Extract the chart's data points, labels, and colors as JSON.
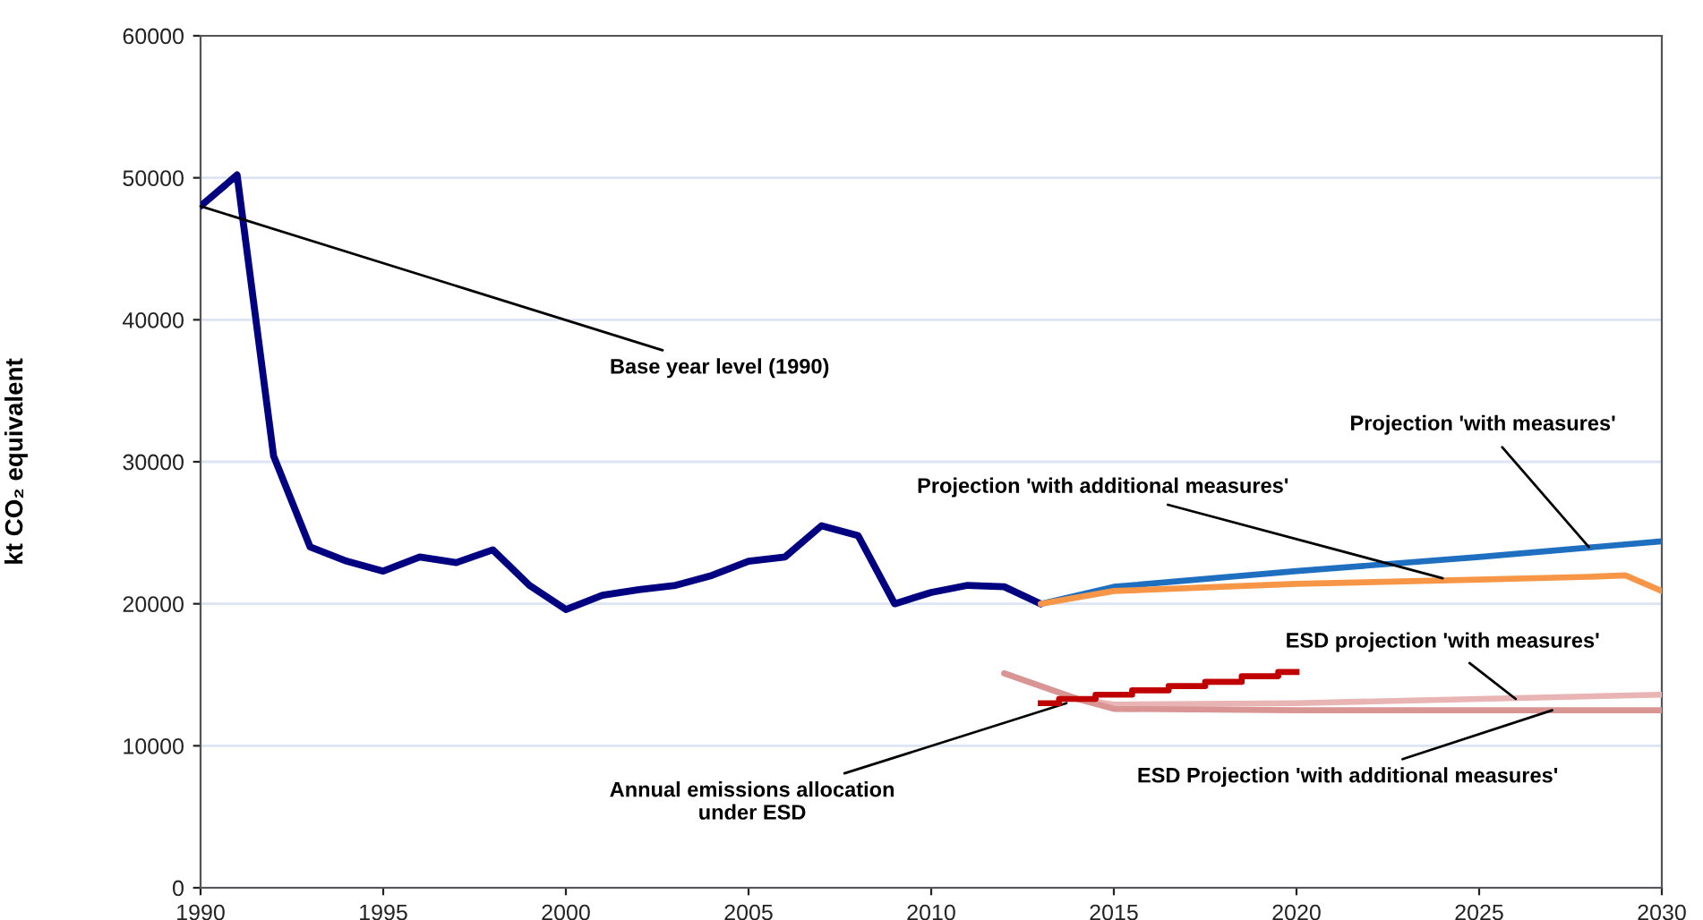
{
  "chart_data": {
    "type": "line",
    "ylabel": "kt CO₂ equivalent",
    "xlim": [
      1990,
      2030
    ],
    "xticks": [
      1990,
      1995,
      2000,
      2005,
      2010,
      2015,
      2020,
      2025,
      2030
    ],
    "ylim": [
      0,
      60000
    ],
    "yticks": [
      0,
      10000,
      20000,
      30000,
      40000,
      50000,
      60000
    ],
    "grid": "y",
    "legend": false,
    "series": [
      {
        "color": "#000080",
        "x": [
          1990,
          1991,
          1992,
          1993,
          1994,
          1995,
          1996,
          1997,
          1998,
          1999,
          2000,
          2001,
          2002,
          2003,
          2004,
          2005,
          2006,
          2007,
          2008,
          2009,
          2010,
          2011,
          2012,
          2013
        ],
        "values": [
          48000,
          50200,
          30400,
          24000,
          23000,
          22300,
          23300,
          22900,
          23800,
          21300,
          19600,
          20600,
          21000,
          21300,
          22000,
          23000,
          23300,
          25500,
          24800,
          20000,
          20800,
          21300,
          21200,
          20000
        ]
      },
      {
        "color": "#1f6fc0",
        "x": [
          2013,
          2015,
          2020,
          2025,
          2030
        ],
        "values": [
          20000,
          21200,
          22300,
          23300,
          24400
        ]
      },
      {
        "color": "#f79646",
        "x": [
          2013,
          2015,
          2020,
          2025,
          2028,
          2029,
          2030
        ],
        "values": [
          20000,
          20900,
          21400,
          21700,
          21900,
          22000,
          20900
        ]
      },
      {
        "color": "#e8b4b4",
        "x": [
          2012,
          2014,
          2015,
          2020,
          2025,
          2030
        ],
        "values": [
          15100,
          13300,
          12900,
          13000,
          13300,
          13600
        ]
      },
      {
        "color": "#d99494",
        "x": [
          2012,
          2014,
          2015,
          2020,
          2025,
          2030
        ],
        "values": [
          15100,
          13300,
          12600,
          12500,
          12500,
          12500
        ]
      },
      {
        "type": "step",
        "color": "#c00000",
        "x": [
          2013,
          2014,
          2015,
          2016,
          2017,
          2018,
          2019,
          2020
        ],
        "values": [
          13000,
          13300,
          13600,
          13900,
          14200,
          14500,
          14900,
          15200
        ]
      }
    ],
    "annotations": [
      {
        "text": "Base year level (1990)",
        "x": 1990,
        "y": 48000
      },
      {
        "text": "Projection 'with measures'",
        "x": 2028,
        "y": 24000
      },
      {
        "text": "Projection 'with additional measures'",
        "x": 2024,
        "y": 21800
      },
      {
        "text": "ESD projection 'with measures'",
        "x": 2026,
        "y": 13300
      },
      {
        "text": "ESD Projection 'with additional measures'",
        "x": 2027,
        "y": 12500
      },
      {
        "text": "Annual emissions allocation\nunder ESD",
        "x": 2013.7,
        "y": 13000
      }
    ]
  }
}
